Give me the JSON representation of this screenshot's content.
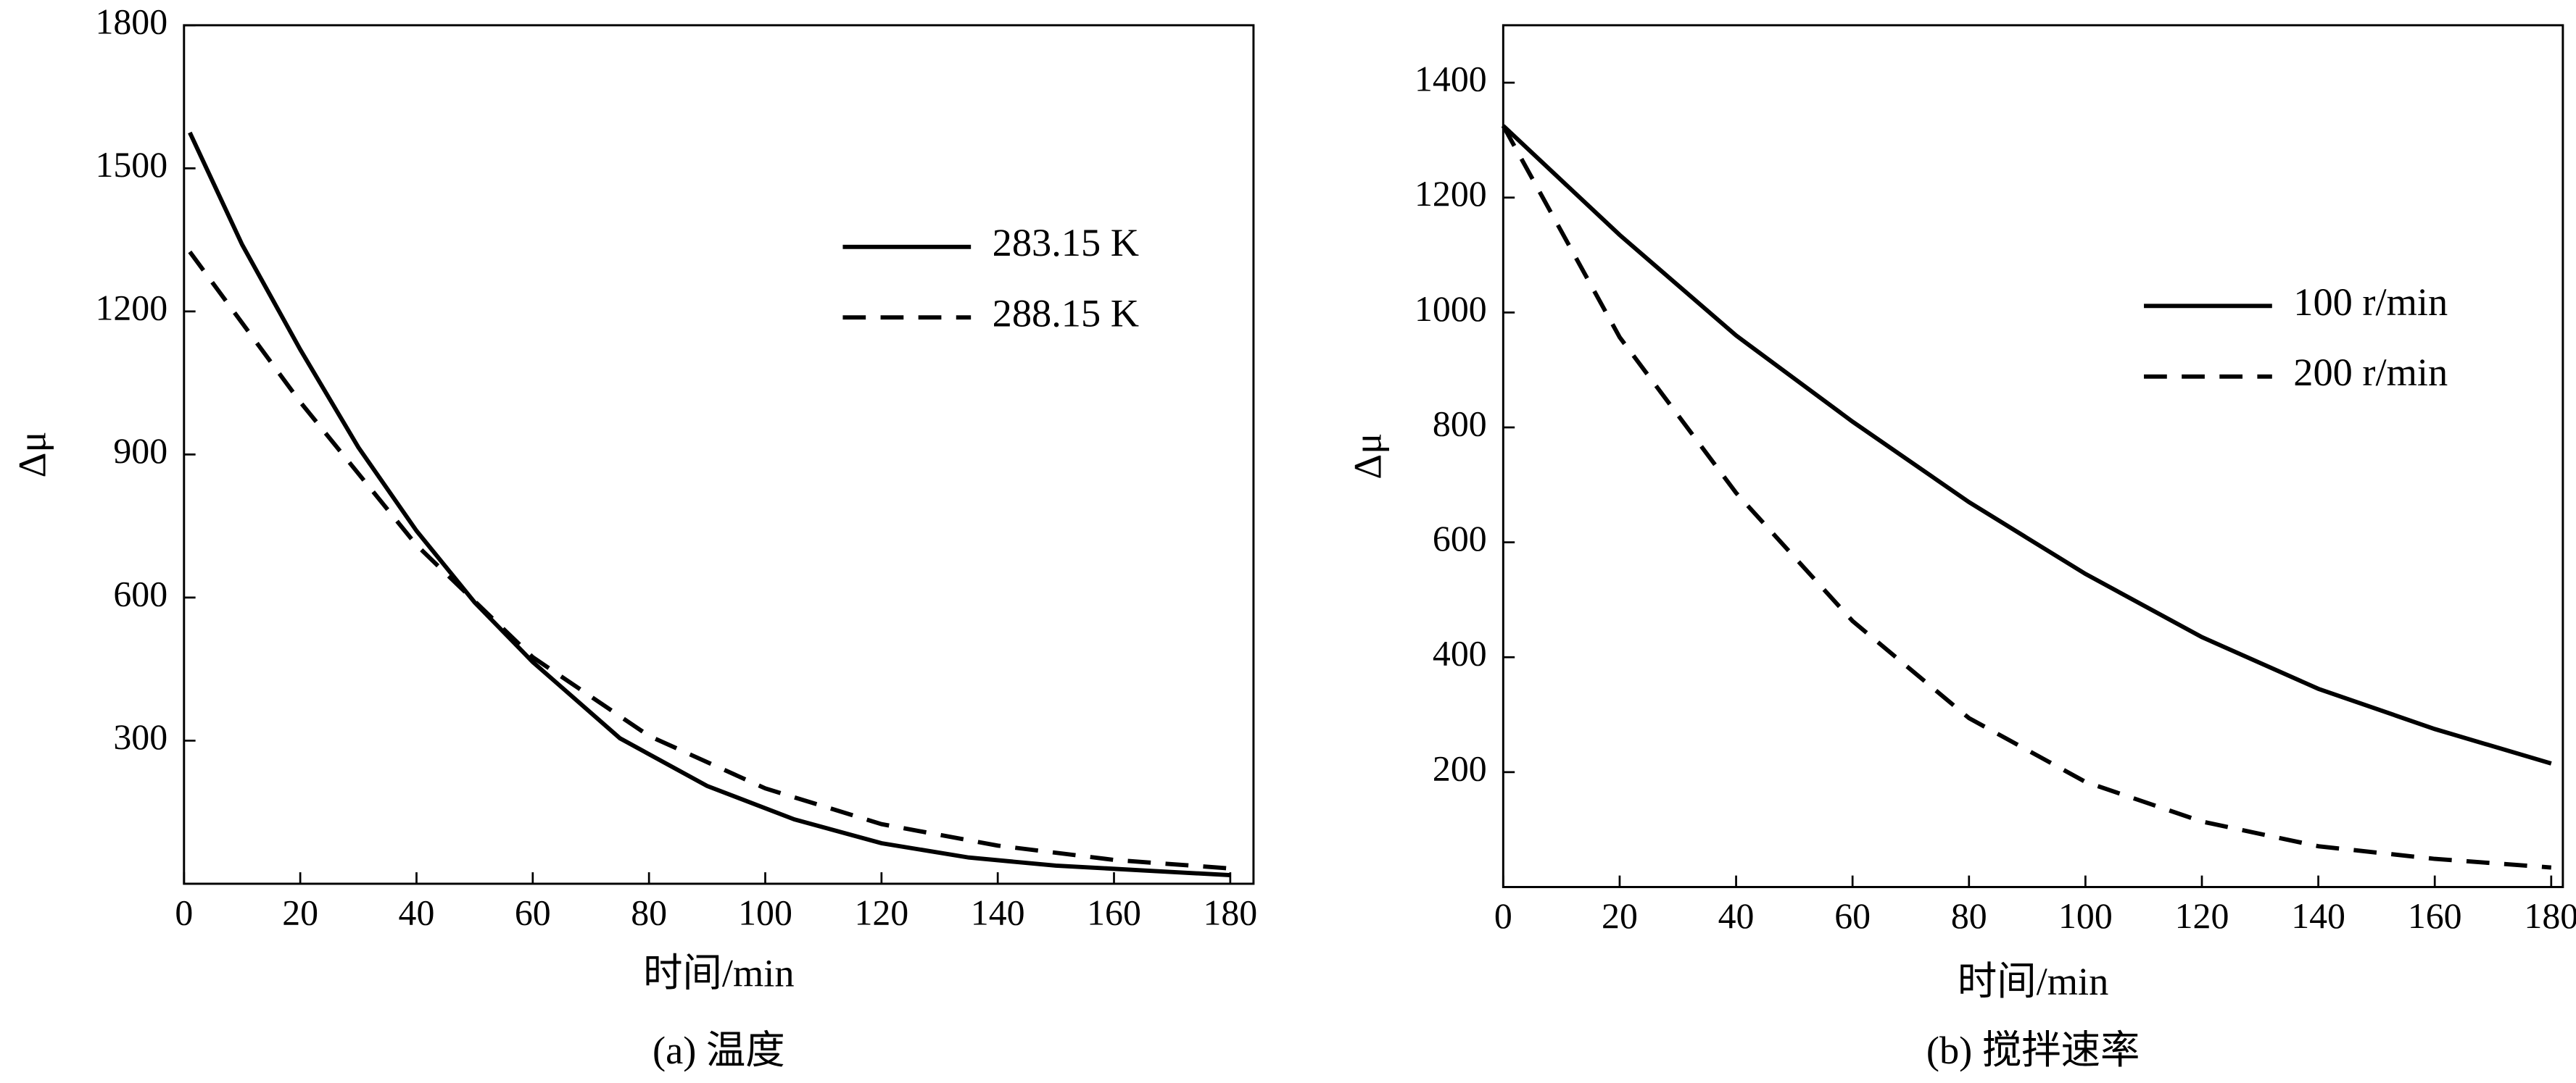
{
  "chart_data": [
    {
      "type": "line",
      "caption": "(a) 温度",
      "x_label": "时间/min",
      "y_label": "Δμ",
      "xlim": [
        0,
        184
      ],
      "xticks": [
        0,
        20,
        40,
        60,
        80,
        100,
        120,
        140,
        160,
        180
      ],
      "ylim": [
        0,
        1800
      ],
      "yticks": [
        300,
        600,
        900,
        1200,
        1500,
        1800
      ],
      "series": [
        {
          "name": "283.15 K",
          "color": "#000000",
          "linestyle": "solid",
          "x": [
            1,
            10,
            20,
            30,
            40,
            50,
            60,
            75,
            90,
            105,
            120,
            135,
            150,
            165,
            180
          ],
          "values": [
            1575,
            1340,
            1120,
            915,
            740,
            590,
            465,
            305,
            205,
            135,
            85,
            55,
            38,
            28,
            18
          ]
        },
        {
          "name": "288.15 K",
          "color": "#000000",
          "linestyle": "dashed",
          "x": [
            1,
            20,
            40,
            60,
            80,
            100,
            120,
            140,
            160,
            180
          ],
          "values": [
            1325,
            1010,
            710,
            475,
            310,
            200,
            125,
            80,
            50,
            32
          ]
        }
      ]
    },
    {
      "type": "line",
      "caption": "(b) 搅拌速率",
      "x_label": "时间/min",
      "y_label": "Δμ",
      "xlim": [
        0,
        182
      ],
      "xticks": [
        0,
        20,
        40,
        60,
        80,
        100,
        120,
        140,
        160,
        180
      ],
      "ylim": [
        0,
        1500
      ],
      "yticks": [
        200,
        400,
        600,
        800,
        1000,
        1200,
        1400
      ],
      "series": [
        {
          "name": "100 r/min",
          "color": "#000000",
          "linestyle": "solid",
          "x": [
            0,
            20,
            40,
            60,
            80,
            100,
            120,
            140,
            160,
            180
          ],
          "values": [
            1325,
            1135,
            960,
            810,
            670,
            545,
            435,
            345,
            275,
            215
          ]
        },
        {
          "name": "200 r/min",
          "color": "#000000",
          "linestyle": "dashed",
          "x": [
            0,
            20,
            40,
            60,
            80,
            100,
            120,
            140,
            160,
            180
          ],
          "values": [
            1325,
            957,
            686,
            463,
            294,
            183,
            114,
            71,
            49,
            34
          ]
        }
      ]
    }
  ]
}
